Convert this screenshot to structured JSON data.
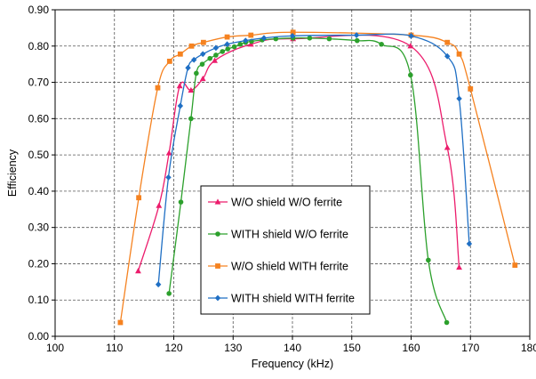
{
  "chart_data": {
    "type": "line",
    "xlabel": "Frequency (kHz)",
    "ylabel": "Efficiency",
    "xlim": [
      100,
      180
    ],
    "ylim": [
      0,
      0.9
    ],
    "xticks": [
      "100",
      "110",
      "120",
      "130",
      "140",
      "150",
      "160",
      "170",
      "180"
    ],
    "yticks": [
      "0.00",
      "0.10",
      "0.20",
      "0.30",
      "0.40",
      "0.50",
      "0.60",
      "0.70",
      "0.80",
      "0.90"
    ],
    "grid": true,
    "legend_position": "center-left",
    "series": [
      {
        "name": "W/O shield W/O ferrite",
        "color": "#ec1c6c",
        "marker": "triangle",
        "points": [
          [
            114,
            0.18
          ],
          [
            117.5,
            0.36
          ],
          [
            119.2,
            0.505
          ],
          [
            121,
            0.69
          ],
          [
            122.9,
            0.678
          ],
          [
            124.9,
            0.71
          ],
          [
            126.9,
            0.76
          ],
          [
            133,
            0.805
          ],
          [
            140.1,
            0.82
          ],
          [
            159.9,
            0.8
          ],
          [
            166.1,
            0.52
          ],
          [
            168.1,
            0.19
          ]
        ]
      },
      {
        "name": "WITH shield W/O ferrite",
        "color": "#2ca02c",
        "marker": "circle",
        "points": [
          [
            119.2,
            0.118
          ],
          [
            121.2,
            0.37
          ],
          [
            122.9,
            0.6
          ],
          [
            123.8,
            0.725
          ],
          [
            124.8,
            0.75
          ],
          [
            126.1,
            0.766
          ],
          [
            127.1,
            0.775
          ],
          [
            128.2,
            0.785
          ],
          [
            129.1,
            0.792
          ],
          [
            130.2,
            0.798
          ],
          [
            131.2,
            0.805
          ],
          [
            132.1,
            0.81
          ],
          [
            133.1,
            0.813
          ],
          [
            134.9,
            0.817
          ],
          [
            137.2,
            0.82
          ],
          [
            140.1,
            0.822
          ],
          [
            142.9,
            0.822
          ],
          [
            146.2,
            0.82
          ],
          [
            150.9,
            0.815
          ],
          [
            155,
            0.805
          ],
          [
            159.9,
            0.72
          ],
          [
            162.9,
            0.21
          ],
          [
            166,
            0.038
          ]
        ]
      },
      {
        "name": "W/O shield WITH ferrite",
        "color": "#f58220",
        "marker": "square",
        "points": [
          [
            111,
            0.038
          ],
          [
            114.1,
            0.382
          ],
          [
            117.3,
            0.685
          ],
          [
            119.3,
            0.758
          ],
          [
            121.1,
            0.778
          ],
          [
            123,
            0.8
          ],
          [
            125,
            0.81
          ],
          [
            129,
            0.825
          ],
          [
            133,
            0.83
          ],
          [
            140.1,
            0.838
          ],
          [
            160,
            0.83
          ],
          [
            166.1,
            0.81
          ],
          [
            168.1,
            0.778
          ],
          [
            170,
            0.682
          ],
          [
            177.5,
            0.196
          ]
        ]
      },
      {
        "name": "WITH shield WITH ferrite",
        "color": "#1f6fc4",
        "marker": "diamond",
        "points": [
          [
            117.4,
            0.143
          ],
          [
            119.1,
            0.438
          ],
          [
            121.1,
            0.635
          ],
          [
            122.4,
            0.74
          ],
          [
            123.4,
            0.762
          ],
          [
            124.9,
            0.778
          ],
          [
            127.1,
            0.795
          ],
          [
            129,
            0.805
          ],
          [
            132.1,
            0.815
          ],
          [
            135.2,
            0.822
          ],
          [
            140,
            0.828
          ],
          [
            150.8,
            0.83
          ],
          [
            160,
            0.828
          ],
          [
            166.1,
            0.772
          ],
          [
            168.1,
            0.655
          ],
          [
            169.8,
            0.255
          ]
        ]
      }
    ]
  }
}
